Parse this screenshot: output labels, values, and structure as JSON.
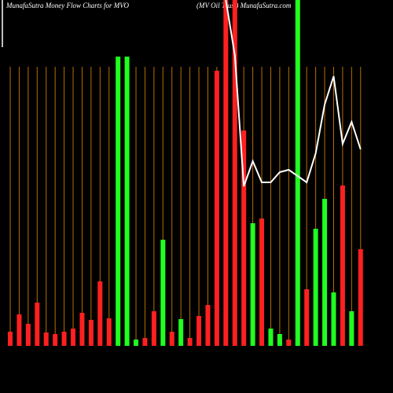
{
  "chart_data": {
    "type": "bar",
    "title": "MunafaSutra  Money Flow  Charts for MVO",
    "subtitle": "(MV Oil Trust) MunafaSutra.com",
    "values": [
      18,
      40,
      28,
      55,
      17,
      15,
      18,
      22,
      42,
      33,
      82,
      35,
      368,
      368,
      8,
      10,
      44,
      135,
      18,
      34,
      10,
      38,
      52,
      350,
      440,
      440,
      274,
      156,
      162,
      22,
      15,
      8,
      440,
      72,
      149,
      187,
      68,
      204,
      44,
      123
    ],
    "colors": [
      "#ff2020",
      "#ff2020",
      "#ff2020",
      "#ff2020",
      "#ff2020",
      "#ff2020",
      "#ff2020",
      "#ff2020",
      "#ff2020",
      "#ff2020",
      "#ff2020",
      "#ff2020",
      "#20ff20",
      "#20ff20",
      "#20ff20",
      "#ff2020",
      "#ff2020",
      "#20ff20",
      "#ff2020",
      "#20ff20",
      "#ff2020",
      "#ff2020",
      "#ff2020",
      "#ff2020",
      "#ff2020",
      "#ff2020",
      "#ff2020",
      "#20ff20",
      "#ff2020",
      "#20ff20",
      "#20ff20",
      "#ff2020",
      "#20ff20",
      "#ff2020",
      "#20ff20",
      "#20ff20",
      "#20ff20",
      "#ff2020",
      "#20ff20",
      "#ff2020"
    ],
    "line": {
      "color": "#ffffff",
      "values": [
        null,
        null,
        null,
        null,
        null,
        null,
        null,
        null,
        null,
        null,
        null,
        null,
        null,
        null,
        null,
        null,
        null,
        null,
        null,
        null,
        null,
        null,
        null,
        null,
        440,
        370,
        203,
        235,
        208,
        208,
        221,
        224,
        216,
        208,
        245,
        307,
        343,
        257,
        285,
        250
      ]
    },
    "guide_color": "#b86e00",
    "ylim": [
      0,
      440
    ]
  }
}
